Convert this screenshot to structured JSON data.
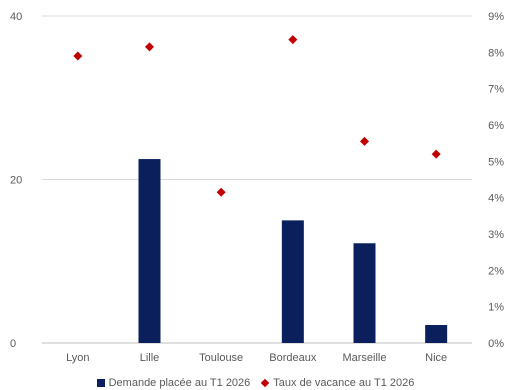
{
  "chart_data": {
    "type": "bar",
    "categories": [
      "Lyon",
      "Lille",
      "Toulouse",
      "Bordeaux",
      "Marseille",
      "Nice"
    ],
    "series": [
      {
        "name": "Demande placée au T1 2026",
        "type": "bar",
        "axis": "left",
        "values": [
          0,
          22.5,
          0,
          15.0,
          12.2,
          2.2
        ],
        "color": "#0b1f5c"
      },
      {
        "name": "Taux de vacance au T1 2026",
        "type": "scatter",
        "marker": "diamond",
        "axis": "right",
        "values": [
          0.079,
          0.0815,
          0.0415,
          0.0835,
          0.0555,
          0.052
        ],
        "color": "#c00000"
      }
    ],
    "y_left": {
      "ylim": [
        0,
        40
      ],
      "ticks": [
        "0",
        "20",
        "40"
      ],
      "tick_values": [
        0,
        20,
        40
      ]
    },
    "y_right": {
      "ylim": [
        0,
        0.09
      ],
      "ticks": [
        "0%",
        "1%",
        "2%",
        "3%",
        "4%",
        "5%",
        "6%",
        "7%",
        "8%",
        "9%"
      ],
      "tick_values": [
        0,
        0.01,
        0.02,
        0.03,
        0.04,
        0.05,
        0.06,
        0.07,
        0.08,
        0.09
      ]
    },
    "title": "",
    "xlabel": "",
    "ylabel": "",
    "grid": true,
    "legend": "bottom"
  }
}
